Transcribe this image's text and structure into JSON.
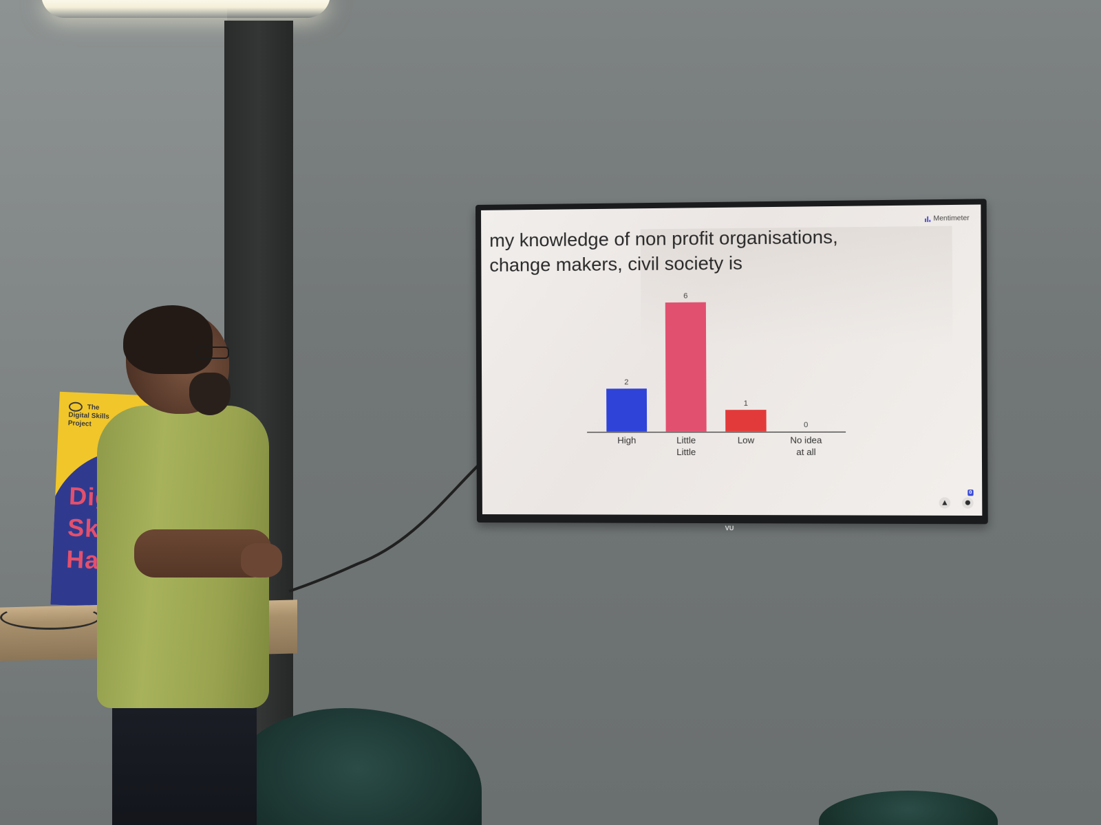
{
  "slide": {
    "title_line1": "my knowledge of non profit organisations,",
    "title_line2": "change makers, civil society is",
    "brand": "Mentimeter",
    "participant_count": "0"
  },
  "poster": {
    "header_line1": "The",
    "header_line2": "Digital Skills",
    "header_line3": "Project",
    "text_line1": "Digi",
    "text_line2": "Skill",
    "text_line3": "Hack"
  },
  "tv": {
    "brand": "VU"
  },
  "icons": {
    "reaction": "thumbs-up-icon",
    "participants": "person-icon",
    "brand": "bar-chart-logo-icon"
  },
  "chart_data": {
    "type": "bar",
    "categories": [
      "High",
      "Little Little",
      "Low",
      "No idea at all"
    ],
    "category_lines": [
      [
        "High"
      ],
      [
        "Little",
        "Little"
      ],
      [
        "Low"
      ],
      [
        "No idea",
        "at all"
      ]
    ],
    "values": [
      2,
      6,
      1,
      0
    ],
    "colors": [
      "#2f43d8",
      "#e2506f",
      "#e23a3a",
      "#e23a3a"
    ],
    "ylim": [
      0,
      6
    ],
    "grid": false,
    "title": "my knowledge of non profit organisations, change makers, civil society is"
  }
}
